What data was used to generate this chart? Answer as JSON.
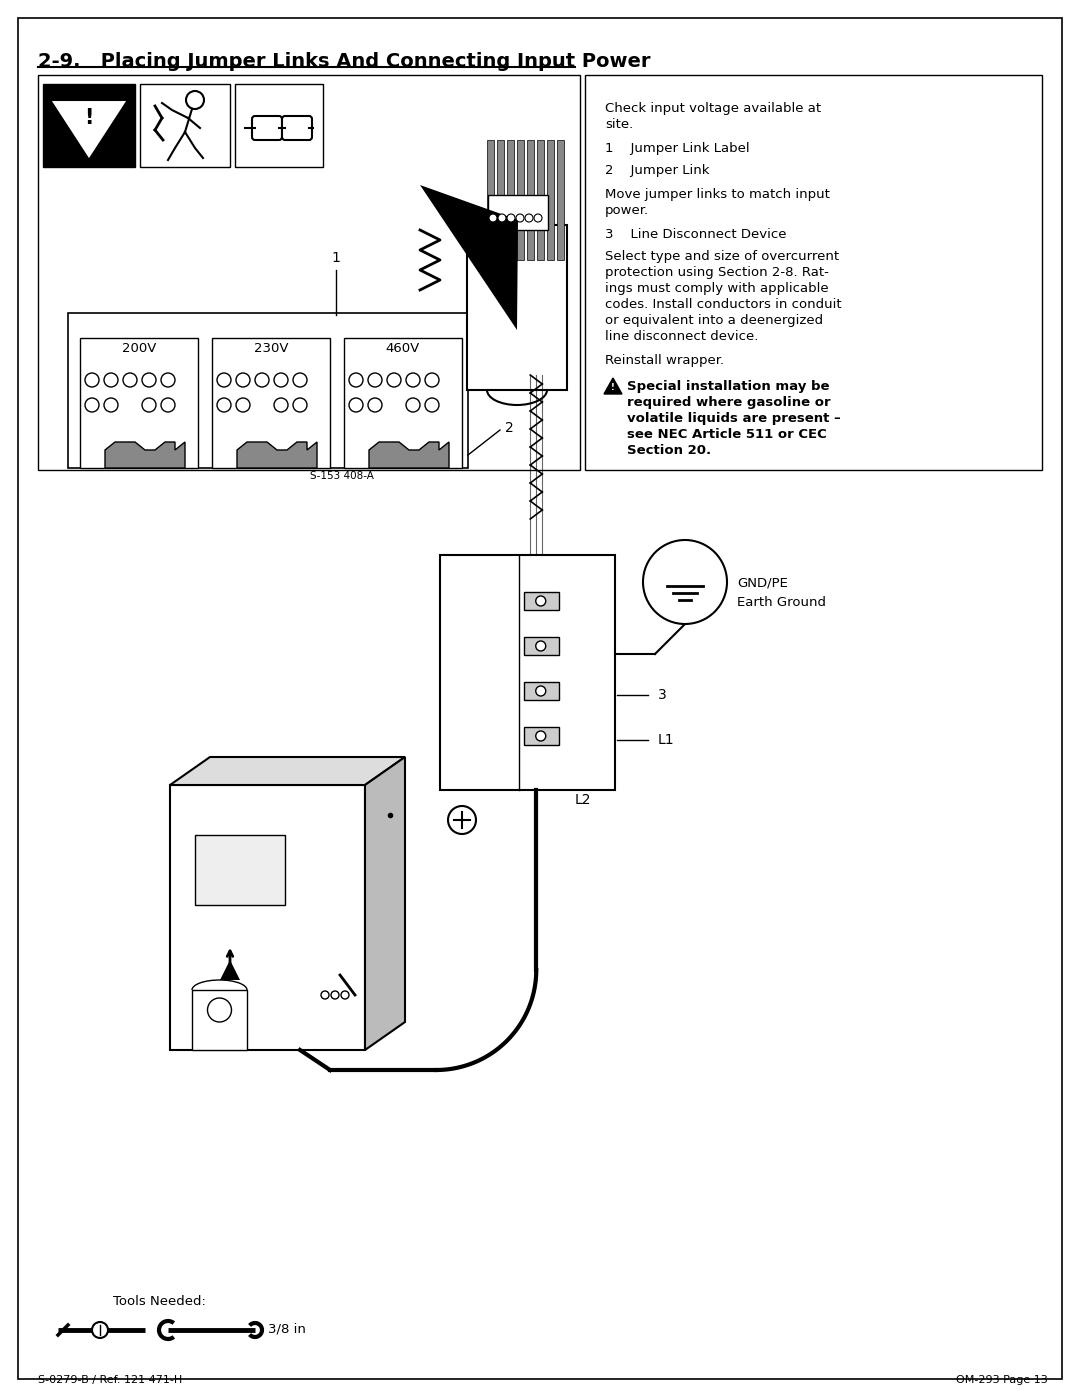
{
  "title": "2-9.   Placing Jumper Links And Connecting Input Power",
  "warning_bold_lines": [
    "Special installation may be",
    "required where gasoline or",
    "volatile liquids are present –",
    "see NEC Article 511 or CEC",
    "Section 20."
  ],
  "footer_left": "S-0279-B / Ref. 121 471-H",
  "footer_right": "OM-293 Page 13",
  "tools_text": "Tools Needed:",
  "tools_size": "3/8 in",
  "voltage_labels": [
    "200V",
    "230V",
    "460V"
  ],
  "diagram_label_s": "S-153 408-A",
  "label_1": "1",
  "label_2": "2",
  "label_3": "3",
  "label_gnd_line1": "GND/PE",
  "label_gnd_line2": "Earth Ground",
  "label_L1": "L1",
  "label_L2": "L2",
  "check_text_line1": "Check input voltage available at",
  "check_text_line2": "site.",
  "item1": "1    Jumper Link Label",
  "item2": "2    Jumper Link",
  "move_line1": "Move jumper links to match input",
  "move_line2": "power.",
  "item3": "3    Line Disconnect Device",
  "para_lines": [
    "Select type and size of overcurrent",
    "protection using Section 2-8. Rat-",
    "ings must comply with applicable",
    "codes. Install conductors in conduit",
    "or equivalent into a deenergized",
    "line disconnect device."
  ],
  "reinstall": "Reinstall wrapper.",
  "bg": "#ffffff",
  "black": "#000000",
  "gray_dark": "#555555",
  "gray_mid": "#888888",
  "gray_light": "#cccccc",
  "gray_lighter": "#dddddd"
}
